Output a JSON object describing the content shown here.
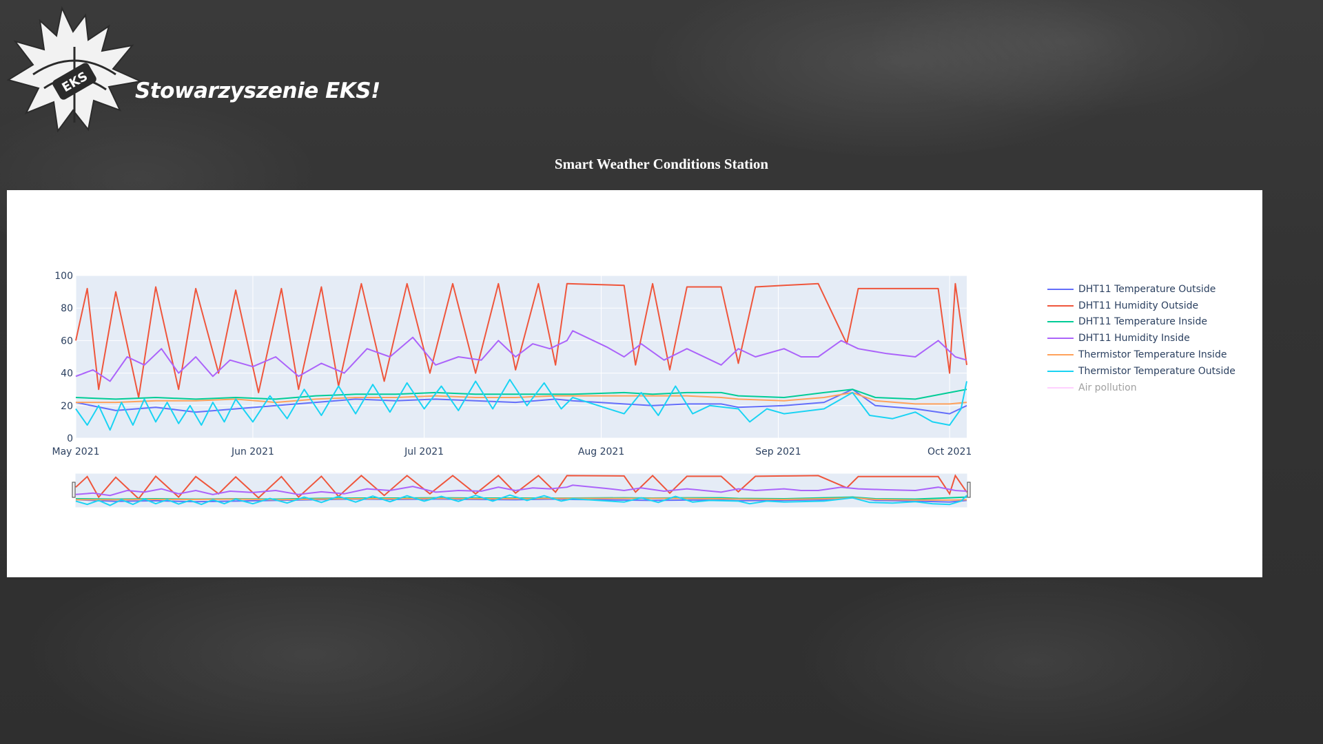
{
  "header": {
    "org_name": "Stowarzyszenie EKS!",
    "logo_text": "EKS",
    "page_title": "Smart Weather Conditions Station"
  },
  "chart_data": {
    "type": "line",
    "x_axis": {
      "type": "date",
      "range": [
        "2021-05-01",
        "2021-10-04"
      ],
      "ticks": [
        "May 2021",
        "Jun 2021",
        "Jul 2021",
        "Aug 2021",
        "Sep 2021",
        "Oct 2021"
      ]
    },
    "y_axis": {
      "range": [
        0,
        100
      ],
      "ticks": [
        "0",
        "20",
        "40",
        "60",
        "80",
        "100"
      ]
    },
    "grid": true,
    "rangeslider": true,
    "legend_position": "right",
    "plot_background": "#e5ecf6",
    "series": [
      {
        "name": "DHT11 Temperature Outside",
        "color": "#636efa",
        "visible": true,
        "points": [
          [
            "2021-05-01",
            22
          ],
          [
            "2021-05-08",
            17
          ],
          [
            "2021-05-15",
            19
          ],
          [
            "2021-05-22",
            16
          ],
          [
            "2021-05-29",
            18
          ],
          [
            "2021-06-05",
            20
          ],
          [
            "2021-06-12",
            22
          ],
          [
            "2021-06-19",
            24
          ],
          [
            "2021-06-26",
            23
          ],
          [
            "2021-07-03",
            24
          ],
          [
            "2021-07-10",
            23
          ],
          [
            "2021-07-17",
            22
          ],
          [
            "2021-07-24",
            24
          ],
          [
            "2021-07-27",
            23
          ],
          [
            "2021-08-05",
            21
          ],
          [
            "2021-08-10",
            20
          ],
          [
            "2021-08-16",
            21
          ],
          [
            "2021-08-22",
            21
          ],
          [
            "2021-08-25",
            19
          ],
          [
            "2021-09-02",
            20
          ],
          [
            "2021-09-09",
            22
          ],
          [
            "2021-09-14",
            30
          ],
          [
            "2021-09-18",
            20
          ],
          [
            "2021-09-25",
            18
          ],
          [
            "2021-10-01",
            15
          ],
          [
            "2021-10-04",
            20
          ]
        ]
      },
      {
        "name": "DHT11 Humidity Outside",
        "color": "#ef553b",
        "visible": true,
        "points": [
          [
            "2021-05-01",
            60
          ],
          [
            "2021-05-03",
            92
          ],
          [
            "2021-05-05",
            30
          ],
          [
            "2021-05-08",
            90
          ],
          [
            "2021-05-12",
            25
          ],
          [
            "2021-05-15",
            93
          ],
          [
            "2021-05-19",
            30
          ],
          [
            "2021-05-22",
            92
          ],
          [
            "2021-05-26",
            40
          ],
          [
            "2021-05-29",
            91
          ],
          [
            "2021-06-02",
            28
          ],
          [
            "2021-06-06",
            92
          ],
          [
            "2021-06-09",
            30
          ],
          [
            "2021-06-13",
            93
          ],
          [
            "2021-06-16",
            32
          ],
          [
            "2021-06-20",
            95
          ],
          [
            "2021-06-24",
            35
          ],
          [
            "2021-06-28",
            95
          ],
          [
            "2021-07-02",
            40
          ],
          [
            "2021-07-06",
            95
          ],
          [
            "2021-07-10",
            40
          ],
          [
            "2021-07-14",
            95
          ],
          [
            "2021-07-17",
            42
          ],
          [
            "2021-07-21",
            95
          ],
          [
            "2021-07-24",
            45
          ],
          [
            "2021-07-26",
            95
          ],
          [
            "2021-08-05",
            94
          ],
          [
            "2021-08-07",
            45
          ],
          [
            "2021-08-10",
            95
          ],
          [
            "2021-08-13",
            42
          ],
          [
            "2021-08-16",
            93
          ],
          [
            "2021-08-22",
            93
          ],
          [
            "2021-08-25",
            46
          ],
          [
            "2021-08-28",
            93
          ],
          [
            "2021-09-02",
            94
          ],
          [
            "2021-09-08",
            95
          ],
          [
            "2021-09-13",
            58
          ],
          [
            "2021-09-15",
            92
          ],
          [
            "2021-09-22",
            92
          ],
          [
            "2021-09-29",
            92
          ],
          [
            "2021-10-01",
            40
          ],
          [
            "2021-10-02",
            95
          ],
          [
            "2021-10-04",
            45
          ]
        ]
      },
      {
        "name": "DHT11 Temperature Inside",
        "color": "#00cc96",
        "visible": true,
        "points": [
          [
            "2021-05-01",
            25
          ],
          [
            "2021-05-08",
            24
          ],
          [
            "2021-05-15",
            25
          ],
          [
            "2021-05-22",
            24
          ],
          [
            "2021-05-29",
            25
          ],
          [
            "2021-06-05",
            24
          ],
          [
            "2021-06-12",
            26
          ],
          [
            "2021-06-19",
            27
          ],
          [
            "2021-06-26",
            27
          ],
          [
            "2021-07-03",
            28
          ],
          [
            "2021-07-10",
            27
          ],
          [
            "2021-07-17",
            27
          ],
          [
            "2021-07-24",
            27
          ],
          [
            "2021-07-27",
            27
          ],
          [
            "2021-08-05",
            28
          ],
          [
            "2021-08-10",
            27
          ],
          [
            "2021-08-16",
            28
          ],
          [
            "2021-08-22",
            28
          ],
          [
            "2021-08-25",
            26
          ],
          [
            "2021-09-02",
            25
          ],
          [
            "2021-09-09",
            28
          ],
          [
            "2021-09-14",
            30
          ],
          [
            "2021-09-18",
            25
          ],
          [
            "2021-09-25",
            24
          ],
          [
            "2021-10-01",
            28
          ],
          [
            "2021-10-04",
            30
          ]
        ]
      },
      {
        "name": "DHT11 Humidity Inside",
        "color": "#ab63fa",
        "visible": true,
        "points": [
          [
            "2021-05-01",
            38
          ],
          [
            "2021-05-04",
            42
          ],
          [
            "2021-05-07",
            35
          ],
          [
            "2021-05-10",
            50
          ],
          [
            "2021-05-13",
            45
          ],
          [
            "2021-05-16",
            55
          ],
          [
            "2021-05-19",
            40
          ],
          [
            "2021-05-22",
            50
          ],
          [
            "2021-05-25",
            38
          ],
          [
            "2021-05-28",
            48
          ],
          [
            "2021-06-01",
            44
          ],
          [
            "2021-06-05",
            50
          ],
          [
            "2021-06-09",
            38
          ],
          [
            "2021-06-13",
            46
          ],
          [
            "2021-06-17",
            40
          ],
          [
            "2021-06-21",
            55
          ],
          [
            "2021-06-25",
            50
          ],
          [
            "2021-06-29",
            62
          ],
          [
            "2021-07-03",
            45
          ],
          [
            "2021-07-07",
            50
          ],
          [
            "2021-07-11",
            48
          ],
          [
            "2021-07-14",
            60
          ],
          [
            "2021-07-17",
            50
          ],
          [
            "2021-07-20",
            58
          ],
          [
            "2021-07-23",
            55
          ],
          [
            "2021-07-26",
            60
          ],
          [
            "2021-07-27",
            66
          ],
          [
            "2021-08-02",
            56
          ],
          [
            "2021-08-05",
            50
          ],
          [
            "2021-08-08",
            58
          ],
          [
            "2021-08-12",
            48
          ],
          [
            "2021-08-16",
            55
          ],
          [
            "2021-08-22",
            45
          ],
          [
            "2021-08-25",
            55
          ],
          [
            "2021-08-28",
            50
          ],
          [
            "2021-09-02",
            55
          ],
          [
            "2021-09-05",
            50
          ],
          [
            "2021-09-08",
            50
          ],
          [
            "2021-09-12",
            60
          ],
          [
            "2021-09-15",
            55
          ],
          [
            "2021-09-20",
            52
          ],
          [
            "2021-09-25",
            50
          ],
          [
            "2021-09-29",
            60
          ],
          [
            "2021-10-02",
            50
          ],
          [
            "2021-10-04",
            48
          ]
        ]
      },
      {
        "name": "Thermistor Temperature Inside",
        "color": "#ffa15a",
        "visible": true,
        "points": [
          [
            "2021-05-01",
            22
          ],
          [
            "2021-05-08",
            22
          ],
          [
            "2021-05-15",
            23
          ],
          [
            "2021-05-22",
            23
          ],
          [
            "2021-05-29",
            24
          ],
          [
            "2021-06-05",
            22
          ],
          [
            "2021-06-12",
            24
          ],
          [
            "2021-06-19",
            25
          ],
          [
            "2021-06-26",
            25
          ],
          [
            "2021-07-03",
            26
          ],
          [
            "2021-07-10",
            25
          ],
          [
            "2021-07-17",
            25
          ],
          [
            "2021-07-24",
            26
          ],
          [
            "2021-07-27",
            26
          ],
          [
            "2021-08-05",
            26
          ],
          [
            "2021-08-10",
            26
          ],
          [
            "2021-08-16",
            26
          ],
          [
            "2021-08-22",
            25
          ],
          [
            "2021-08-25",
            24
          ],
          [
            "2021-09-02",
            23
          ],
          [
            "2021-09-09",
            25
          ],
          [
            "2021-09-14",
            28
          ],
          [
            "2021-09-18",
            23
          ],
          [
            "2021-09-25",
            21
          ],
          [
            "2021-10-01",
            21
          ],
          [
            "2021-10-04",
            22
          ]
        ]
      },
      {
        "name": "Thermistor Temperature Outside",
        "color": "#19d3f3",
        "visible": true,
        "points": [
          [
            "2021-05-01",
            18
          ],
          [
            "2021-05-03",
            8
          ],
          [
            "2021-05-05",
            20
          ],
          [
            "2021-05-07",
            5
          ],
          [
            "2021-05-09",
            22
          ],
          [
            "2021-05-11",
            8
          ],
          [
            "2021-05-13",
            24
          ],
          [
            "2021-05-15",
            10
          ],
          [
            "2021-05-17",
            22
          ],
          [
            "2021-05-19",
            9
          ],
          [
            "2021-05-21",
            20
          ],
          [
            "2021-05-23",
            8
          ],
          [
            "2021-05-25",
            22
          ],
          [
            "2021-05-27",
            10
          ],
          [
            "2021-05-29",
            24
          ],
          [
            "2021-06-01",
            10
          ],
          [
            "2021-06-04",
            26
          ],
          [
            "2021-06-07",
            12
          ],
          [
            "2021-06-10",
            30
          ],
          [
            "2021-06-13",
            14
          ],
          [
            "2021-06-16",
            32
          ],
          [
            "2021-06-19",
            15
          ],
          [
            "2021-06-22",
            33
          ],
          [
            "2021-06-25",
            16
          ],
          [
            "2021-06-28",
            34
          ],
          [
            "2021-07-01",
            18
          ],
          [
            "2021-07-04",
            32
          ],
          [
            "2021-07-07",
            17
          ],
          [
            "2021-07-10",
            35
          ],
          [
            "2021-07-13",
            18
          ],
          [
            "2021-07-16",
            36
          ],
          [
            "2021-07-19",
            20
          ],
          [
            "2021-07-22",
            34
          ],
          [
            "2021-07-25",
            18
          ],
          [
            "2021-07-27",
            25
          ],
          [
            "2021-08-05",
            15
          ],
          [
            "2021-08-08",
            28
          ],
          [
            "2021-08-11",
            14
          ],
          [
            "2021-08-14",
            32
          ],
          [
            "2021-08-17",
            15
          ],
          [
            "2021-08-20",
            20
          ],
          [
            "2021-08-25",
            18
          ],
          [
            "2021-08-27",
            10
          ],
          [
            "2021-08-30",
            18
          ],
          [
            "2021-09-02",
            15
          ],
          [
            "2021-09-09",
            18
          ],
          [
            "2021-09-14",
            28
          ],
          [
            "2021-09-17",
            14
          ],
          [
            "2021-09-21",
            12
          ],
          [
            "2021-09-25",
            16
          ],
          [
            "2021-09-28",
            10
          ],
          [
            "2021-10-01",
            8
          ],
          [
            "2021-10-03",
            18
          ],
          [
            "2021-10-04",
            35
          ]
        ]
      },
      {
        "name": "Air pollution",
        "color": "#ff97ff",
        "visible": false,
        "points": []
      }
    ]
  }
}
